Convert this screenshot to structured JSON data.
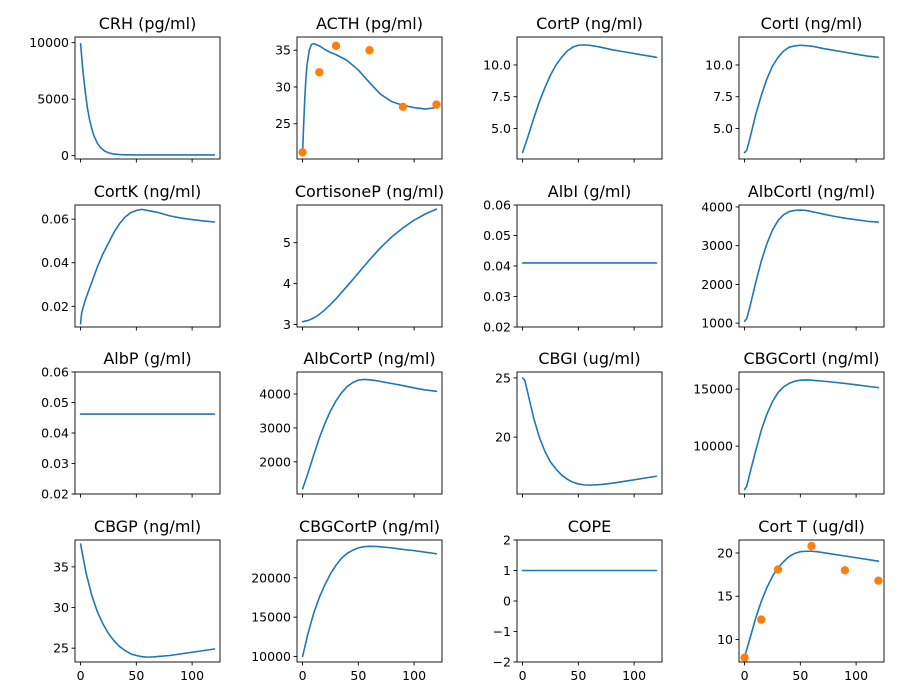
{
  "colors": {
    "model_line": "#1f77b4",
    "observed_points": "#ff7f0e",
    "axes": "#000000"
  },
  "chart_data": [
    {
      "type": "line",
      "title": "CRH (pg/ml)",
      "xlim": [
        -5,
        125
      ],
      "ylim": [
        -300,
        10500
      ],
      "yticks": [
        0,
        5000,
        10000
      ],
      "ytick_labels": [
        "0",
        "5000",
        "10000"
      ],
      "x_tick_labels_visible": false,
      "series": [
        {
          "x": [
            0,
            2,
            4,
            6,
            8,
            10,
            12,
            15,
            18,
            22,
            26,
            30,
            35,
            40,
            50,
            60,
            80,
            100,
            120
          ],
          "y": [
            9900,
            7600,
            5800,
            4300,
            3200,
            2400,
            1750,
            1100,
            700,
            380,
            220,
            140,
            90,
            70,
            60,
            60,
            60,
            60,
            60
          ]
        }
      ]
    },
    {
      "type": "line",
      "title": "ACTH (pg/ml)",
      "xlim": [
        -5,
        125
      ],
      "ylim": [
        20.2,
        36.8
      ],
      "yticks": [
        25,
        30,
        35
      ],
      "ytick_labels": [
        "25",
        "30",
        "35"
      ],
      "x_tick_labels_visible": false,
      "series": [
        {
          "x": [
            0,
            1,
            2,
            3,
            4,
            6,
            8,
            10,
            15,
            20,
            25,
            30,
            40,
            50,
            60,
            70,
            80,
            90,
            100,
            110,
            120
          ],
          "y": [
            21,
            25,
            28.5,
            31.2,
            33.0,
            35.0,
            35.8,
            35.9,
            35.6,
            35.1,
            34.7,
            34.4,
            33.6,
            32.3,
            30.6,
            29.0,
            28.0,
            27.5,
            27.2,
            27.0,
            27.2
          ]
        }
      ],
      "observed": {
        "x": [
          0,
          15,
          30,
          60,
          90,
          120
        ],
        "y": [
          21.1,
          32.0,
          35.6,
          35.0,
          27.3,
          27.6
        ]
      }
    },
    {
      "type": "line",
      "title": "CortP (ng/ml)",
      "xlim": [
        -5,
        125
      ],
      "ylim": [
        2.6,
        12.2
      ],
      "yticks": [
        5.0,
        7.5,
        10.0
      ],
      "ytick_labels": [
        "5.0",
        "7.5",
        "10.0"
      ],
      "x_tick_labels_visible": false,
      "series": [
        {
          "x": [
            0,
            5,
            10,
            15,
            20,
            25,
            30,
            35,
            40,
            45,
            50,
            55,
            60,
            65,
            70,
            80,
            90,
            100,
            110,
            120
          ],
          "y": [
            3.1,
            4.4,
            5.8,
            7.1,
            8.2,
            9.2,
            10.0,
            10.6,
            11.1,
            11.4,
            11.55,
            11.58,
            11.55,
            11.48,
            11.4,
            11.2,
            11.05,
            10.9,
            10.75,
            10.6
          ]
        }
      ]
    },
    {
      "type": "line",
      "title": "CortI (ng/ml)",
      "xlim": [
        -5,
        125
      ],
      "ylim": [
        2.6,
        12.2
      ],
      "yticks": [
        5.0,
        7.5,
        10.0
      ],
      "ytick_labels": [
        "5.0",
        "7.5",
        "10.0"
      ],
      "x_tick_labels_visible": false,
      "series": [
        {
          "x": [
            0,
            2,
            5,
            10,
            15,
            20,
            25,
            30,
            35,
            40,
            45,
            50,
            55,
            60,
            65,
            70,
            80,
            90,
            100,
            110,
            120
          ],
          "y": [
            3.1,
            3.3,
            4.3,
            6.1,
            7.6,
            8.9,
            9.9,
            10.6,
            11.1,
            11.4,
            11.5,
            11.55,
            11.52,
            11.48,
            11.4,
            11.3,
            11.15,
            11.0,
            10.85,
            10.7,
            10.6
          ]
        }
      ]
    },
    {
      "type": "line",
      "title": "CortK (ng/ml)",
      "xlim": [
        -5,
        125
      ],
      "ylim": [
        0.0105,
        0.0665
      ],
      "yticks": [
        0.02,
        0.04,
        0.06
      ],
      "ytick_labels": [
        "0.02",
        "0.04",
        "0.06"
      ],
      "x_tick_labels_visible": false,
      "series": [
        {
          "x": [
            0,
            1,
            2,
            5,
            10,
            15,
            20,
            25,
            30,
            35,
            40,
            45,
            50,
            55,
            60,
            65,
            70,
            80,
            90,
            100,
            110,
            120
          ],
          "y": [
            0.012,
            0.017,
            0.019,
            0.024,
            0.031,
            0.038,
            0.044,
            0.049,
            0.054,
            0.058,
            0.061,
            0.063,
            0.064,
            0.0645,
            0.064,
            0.0635,
            0.063,
            0.0615,
            0.0605,
            0.0598,
            0.0592,
            0.0587
          ]
        }
      ]
    },
    {
      "type": "line",
      "title": "CortisoneP (ng/ml)",
      "xlim": [
        -5,
        125
      ],
      "ylim": [
        2.94,
        5.92
      ],
      "yticks": [
        3,
        4,
        5
      ],
      "ytick_labels": [
        "3",
        "4",
        "5"
      ],
      "x_tick_labels_visible": false,
      "series": [
        {
          "x": [
            0,
            5,
            10,
            15,
            20,
            25,
            30,
            40,
            50,
            60,
            70,
            80,
            90,
            100,
            110,
            120
          ],
          "y": [
            3.07,
            3.1,
            3.16,
            3.25,
            3.36,
            3.49,
            3.63,
            3.94,
            4.26,
            4.58,
            4.88,
            5.14,
            5.36,
            5.55,
            5.7,
            5.82
          ]
        }
      ]
    },
    {
      "type": "line",
      "title": "AlbI (g/ml)",
      "xlim": [
        -5,
        125
      ],
      "ylim": [
        0.02,
        0.06
      ],
      "yticks": [
        0.02,
        0.03,
        0.04,
        0.05,
        0.06
      ],
      "ytick_labels": [
        "0.02",
        "0.03",
        "0.04",
        "0.05",
        "0.06"
      ],
      "x_tick_labels_visible": false,
      "series": [
        {
          "x": [
            0,
            120
          ],
          "y": [
            0.041,
            0.041
          ]
        }
      ]
    },
    {
      "type": "line",
      "title": "AlbCortI (ng/ml)",
      "xlim": [
        -5,
        125
      ],
      "ylim": [
        900,
        4050
      ],
      "yticks": [
        1000,
        2000,
        3000,
        4000
      ],
      "ytick_labels": [
        "1000",
        "2000",
        "3000",
        "4000"
      ],
      "x_tick_labels_visible": false,
      "series": [
        {
          "x": [
            0,
            2,
            5,
            10,
            15,
            20,
            25,
            30,
            35,
            40,
            45,
            50,
            55,
            60,
            65,
            70,
            80,
            90,
            100,
            110,
            120
          ],
          "y": [
            1050,
            1120,
            1450,
            2050,
            2600,
            3050,
            3400,
            3650,
            3800,
            3880,
            3910,
            3920,
            3910,
            3880,
            3850,
            3820,
            3760,
            3710,
            3670,
            3630,
            3610
          ]
        }
      ]
    },
    {
      "type": "line",
      "title": "AlbP (g/ml)",
      "xlim": [
        -5,
        125
      ],
      "ylim": [
        0.02,
        0.06
      ],
      "yticks": [
        0.02,
        0.03,
        0.04,
        0.05,
        0.06
      ],
      "ytick_labels": [
        "0.02",
        "0.03",
        "0.04",
        "0.05",
        "0.06"
      ],
      "x_tick_labels_visible": false,
      "series": [
        {
          "x": [
            0,
            120
          ],
          "y": [
            0.0462,
            0.0462
          ]
        }
      ]
    },
    {
      "type": "line",
      "title": "AlbCortP (ng/ml)",
      "xlim": [
        -5,
        125
      ],
      "ylim": [
        1050,
        4650
      ],
      "yticks": [
        2000,
        3000,
        4000
      ],
      "ytick_labels": [
        "2000",
        "3000",
        "4000"
      ],
      "x_tick_labels_visible": false,
      "series": [
        {
          "x": [
            0,
            5,
            10,
            15,
            20,
            25,
            30,
            35,
            40,
            45,
            50,
            55,
            60,
            65,
            70,
            80,
            90,
            100,
            110,
            120
          ],
          "y": [
            1200,
            1680,
            2200,
            2700,
            3130,
            3500,
            3800,
            4040,
            4220,
            4340,
            4410,
            4430,
            4420,
            4400,
            4370,
            4310,
            4250,
            4180,
            4120,
            4080
          ]
        }
      ]
    },
    {
      "type": "line",
      "title": "CBGI (ug/ml)",
      "xlim": [
        -5,
        125
      ],
      "ylim": [
        15.2,
        25.5
      ],
      "yticks": [
        20,
        25
      ],
      "ytick_labels": [
        "20",
        "25"
      ],
      "x_tick_labels_visible": false,
      "series": [
        {
          "x": [
            0,
            2,
            5,
            10,
            15,
            20,
            25,
            30,
            35,
            40,
            45,
            50,
            55,
            60,
            65,
            70,
            80,
            90,
            100,
            110,
            120
          ],
          "y": [
            25.0,
            24.8,
            23.6,
            21.6,
            20.0,
            18.8,
            17.9,
            17.3,
            16.8,
            16.45,
            16.2,
            16.05,
            15.97,
            15.95,
            15.97,
            16.0,
            16.1,
            16.25,
            16.4,
            16.55,
            16.7
          ]
        }
      ]
    },
    {
      "type": "line",
      "title": "CBGCortI (ng/ml)",
      "xlim": [
        -5,
        125
      ],
      "ylim": [
        5800,
        16500
      ],
      "yticks": [
        10000,
        15000
      ],
      "ytick_labels": [
        "10000",
        "15000"
      ],
      "x_tick_labels_visible": false,
      "series": [
        {
          "x": [
            0,
            2,
            5,
            10,
            15,
            20,
            25,
            30,
            35,
            40,
            45,
            50,
            55,
            60,
            65,
            70,
            80,
            90,
            100,
            110,
            120
          ],
          "y": [
            6200,
            6500,
            7700,
            9600,
            11400,
            12800,
            13900,
            14700,
            15200,
            15500,
            15700,
            15780,
            15800,
            15780,
            15740,
            15700,
            15600,
            15500,
            15380,
            15250,
            15130
          ]
        }
      ]
    },
    {
      "type": "line",
      "title": "CBGP (ng/ml)",
      "xlim": [
        -5,
        125
      ],
      "ylim": [
        23.3,
        38.3
      ],
      "yticks": [
        25,
        30,
        35
      ],
      "ytick_labels": [
        "25",
        "30",
        "35"
      ],
      "x_tick_labels_visible": true,
      "xticks": [
        0,
        50,
        100
      ],
      "xtick_labels": [
        "0",
        "50",
        "100"
      ],
      "series": [
        {
          "x": [
            0,
            5,
            10,
            15,
            20,
            25,
            30,
            35,
            40,
            45,
            50,
            55,
            60,
            65,
            70,
            80,
            90,
            100,
            110,
            120
          ],
          "y": [
            37.8,
            34.2,
            31.5,
            29.5,
            28.0,
            26.8,
            25.9,
            25.2,
            24.7,
            24.3,
            24.1,
            23.95,
            23.9,
            23.92,
            23.98,
            24.1,
            24.3,
            24.5,
            24.7,
            24.9
          ]
        }
      ]
    },
    {
      "type": "line",
      "title": "CBGCortP (ng/ml)",
      "xlim": [
        -5,
        125
      ],
      "ylim": [
        9300,
        24800
      ],
      "yticks": [
        10000,
        15000,
        20000
      ],
      "ytick_labels": [
        "10000",
        "15000",
        "20000"
      ],
      "x_tick_labels_visible": true,
      "xticks": [
        0,
        50,
        100
      ],
      "xtick_labels": [
        "0",
        "50",
        "100"
      ],
      "series": [
        {
          "x": [
            0,
            5,
            10,
            15,
            20,
            25,
            30,
            35,
            40,
            45,
            50,
            55,
            60,
            65,
            70,
            80,
            90,
            100,
            110,
            120
          ],
          "y": [
            10000,
            13000,
            15500,
            17500,
            19100,
            20500,
            21600,
            22500,
            23100,
            23500,
            23800,
            23950,
            24000,
            23980,
            23930,
            23800,
            23600,
            23450,
            23250,
            23050
          ]
        }
      ]
    },
    {
      "type": "line",
      "title": "COPE",
      "xlim": [
        -5,
        125
      ],
      "ylim": [
        -2,
        2
      ],
      "yticks": [
        -2,
        -1,
        0,
        1,
        2
      ],
      "ytick_labels": [
        "−2",
        "−1",
        "0",
        "1",
        "2"
      ],
      "x_tick_labels_visible": true,
      "xticks": [
        0,
        50,
        100
      ],
      "xtick_labels": [
        "0",
        "50",
        "100"
      ],
      "series": [
        {
          "x": [
            0,
            120
          ],
          "y": [
            1,
            1
          ]
        }
      ]
    },
    {
      "type": "line",
      "title": "Cort T (ug/dl)",
      "xlim": [
        -5,
        125
      ],
      "ylim": [
        7.4,
        21.5
      ],
      "yticks": [
        10,
        15,
        20
      ],
      "ytick_labels": [
        "10",
        "15",
        "20"
      ],
      "x_tick_labels_visible": true,
      "xticks": [
        0,
        50,
        100
      ],
      "xtick_labels": [
        "0",
        "50",
        "100"
      ],
      "series": [
        {
          "x": [
            0,
            5,
            10,
            15,
            20,
            25,
            30,
            35,
            40,
            45,
            50,
            55,
            60,
            65,
            70,
            80,
            90,
            100,
            110,
            120
          ],
          "y": [
            8.0,
            10.2,
            12.5,
            14.4,
            16.0,
            17.3,
            18.3,
            19.0,
            19.6,
            19.95,
            20.15,
            20.2,
            20.2,
            20.15,
            20.05,
            19.85,
            19.65,
            19.45,
            19.25,
            19.05
          ]
        }
      ],
      "observed": {
        "x": [
          0,
          15,
          30,
          60,
          90,
          120
        ],
        "y": [
          7.9,
          12.3,
          18.1,
          20.8,
          18.0,
          16.8
        ]
      }
    }
  ]
}
